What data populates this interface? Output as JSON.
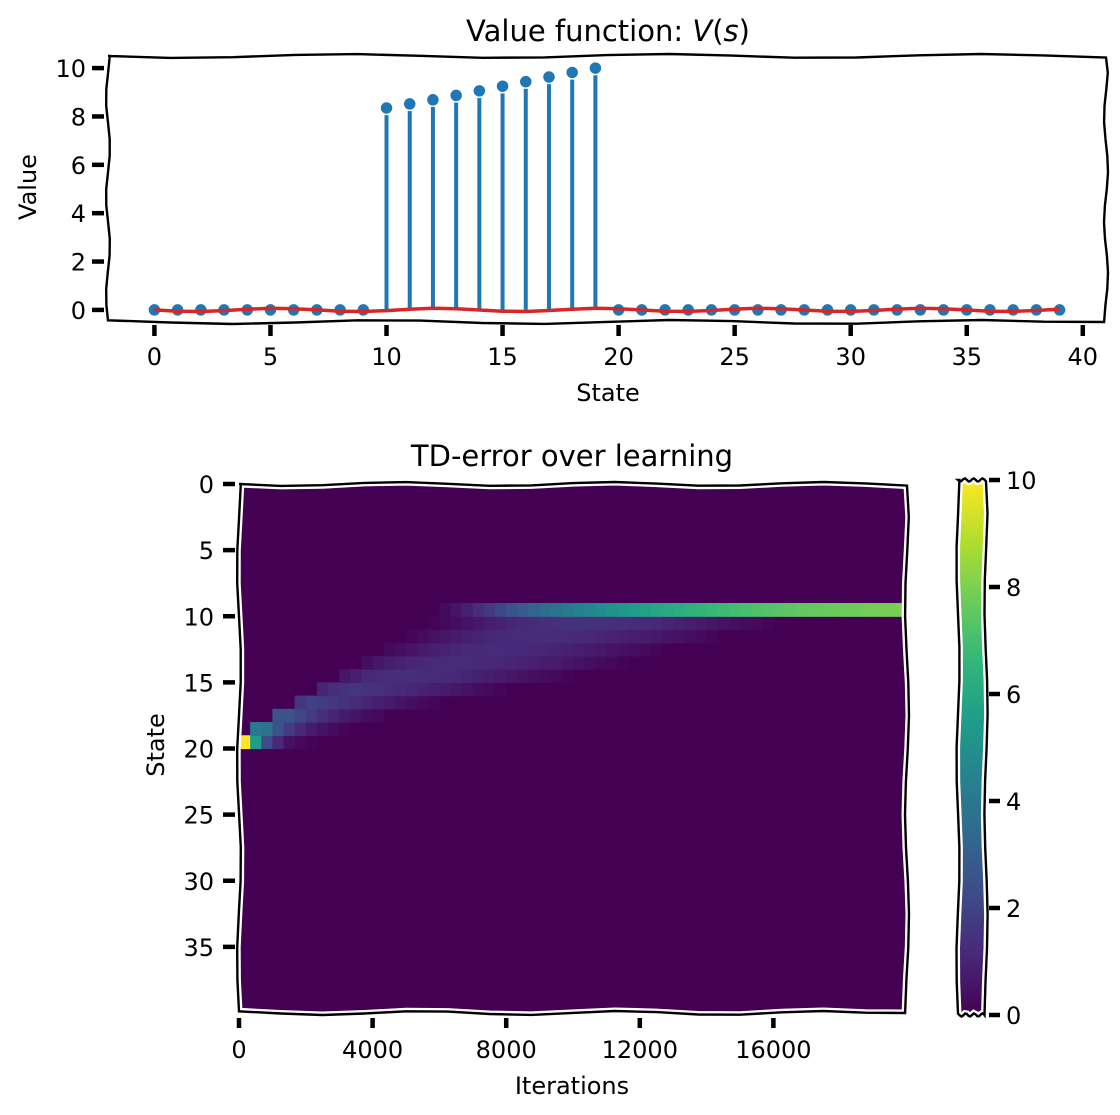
{
  "chart_data": [
    {
      "type": "line",
      "title": "Value function: V(s)",
      "title_prefix": "Value function: ",
      "title_v": "V",
      "title_s": "s",
      "xlabel": "State",
      "ylabel": "Value",
      "xlim": [
        -2,
        41
      ],
      "ylim": [
        -0.5,
        10.5
      ],
      "xticks": [
        0,
        5,
        10,
        15,
        20,
        25,
        30,
        35,
        40
      ],
      "yticks": [
        0,
        2,
        4,
        6,
        8,
        10
      ],
      "grid": false,
      "colors": {
        "stems": "#1f77b4",
        "line": "#d62728"
      },
      "series": [
        {
          "style": "stem",
          "x": [
            0,
            1,
            2,
            3,
            4,
            5,
            6,
            7,
            8,
            9,
            10,
            11,
            12,
            13,
            14,
            15,
            16,
            17,
            18,
            19,
            20,
            21,
            22,
            23,
            24,
            25,
            26,
            27,
            28,
            29,
            30,
            31,
            32,
            33,
            34,
            35,
            36,
            37,
            38,
            39
          ],
          "values": [
            0,
            0,
            0,
            0,
            0,
            0,
            0,
            0,
            0,
            0,
            8.35,
            8.52,
            8.69,
            8.87,
            9.06,
            9.25,
            9.44,
            9.63,
            9.82,
            10.0,
            0,
            0,
            0,
            0,
            0,
            0,
            0,
            0,
            0,
            0,
            0,
            0,
            0,
            0,
            0,
            0,
            0,
            0,
            0,
            0
          ]
        },
        {
          "style": "line",
          "x": [
            0,
            1,
            2,
            3,
            4,
            5,
            6,
            7,
            8,
            9,
            10,
            11,
            12,
            13,
            14,
            15,
            16,
            17,
            18,
            19,
            20,
            21,
            22,
            23,
            24,
            25,
            26,
            27,
            28,
            29,
            30,
            31,
            32,
            33,
            34,
            35,
            36,
            37,
            38,
            39
          ],
          "values": [
            0,
            0,
            0,
            0,
            0,
            0,
            0,
            0,
            0,
            0,
            0,
            0,
            0,
            0,
            0,
            0,
            0,
            0,
            0,
            0,
            0,
            0,
            0,
            0,
            0,
            0,
            0,
            0,
            0,
            0,
            0,
            0,
            0,
            0,
            0,
            0,
            0,
            0,
            0,
            0
          ]
        }
      ]
    },
    {
      "type": "heatmap",
      "title": "TD-error over learning",
      "xlabel": "Iterations",
      "ylabel": "State",
      "xticks": [
        0,
        4000,
        8000,
        12000,
        16000
      ],
      "yticks": [
        0,
        5,
        10,
        15,
        20,
        25,
        30,
        35
      ],
      "x_extent": [
        0,
        20000
      ],
      "y_extent": [
        0,
        40
      ],
      "n_columns": 60,
      "n_rows": 40,
      "colormap": "viridis",
      "colorbar": {
        "min": 0,
        "max": 10,
        "ticks": [
          0,
          2,
          4,
          6,
          8,
          10
        ]
      },
      "cells": [
        {
          "state": 19,
          "from_col": 0,
          "values": [
            10.0,
            5.5,
            2.3,
            1.1,
            0.45,
            0.2,
            0.1
          ]
        },
        {
          "state": 18,
          "from_col": 1,
          "values": [
            4.0,
            3.8,
            2.6,
            1.8,
            1.1,
            0.75,
            0.5,
            0.3,
            0.15
          ]
        },
        {
          "state": 17,
          "from_col": 3,
          "values": [
            2.5,
            2.6,
            2.1,
            1.7,
            1.3,
            1.0,
            0.75,
            0.55,
            0.35,
            0.2
          ]
        },
        {
          "state": 16,
          "from_col": 5,
          "values": [
            1.6,
            1.9,
            1.75,
            1.6,
            1.4,
            1.2,
            1.0,
            0.85,
            0.7,
            0.55,
            0.4,
            0.25,
            0.15
          ]
        },
        {
          "state": 15,
          "from_col": 7,
          "values": [
            1.0,
            1.3,
            1.45,
            1.5,
            1.45,
            1.35,
            1.25,
            1.15,
            1.05,
            0.95,
            0.85,
            0.72,
            0.6,
            0.48,
            0.35,
            0.25,
            0.15
          ]
        },
        {
          "state": 14,
          "from_col": 9,
          "values": [
            0.6,
            0.85,
            1.1,
            1.2,
            1.3,
            1.32,
            1.3,
            1.25,
            1.2,
            1.15,
            1.1,
            1.0,
            0.9,
            0.8,
            0.7,
            0.6,
            0.5,
            0.4,
            0.3,
            0.2,
            0.12
          ]
        },
        {
          "state": 13,
          "from_col": 11,
          "values": [
            0.4,
            0.6,
            0.8,
            0.95,
            1.05,
            1.15,
            1.2,
            1.22,
            1.2,
            1.18,
            1.15,
            1.1,
            1.05,
            1.0,
            0.92,
            0.85,
            0.78,
            0.7,
            0.6,
            0.5,
            0.4,
            0.3,
            0.2,
            0.12
          ]
        },
        {
          "state": 12,
          "from_col": 13,
          "values": [
            0.25,
            0.4,
            0.55,
            0.7,
            0.85,
            0.95,
            1.05,
            1.12,
            1.15,
            1.18,
            1.18,
            1.16,
            1.12,
            1.08,
            1.02,
            0.96,
            0.9,
            0.82,
            0.74,
            0.65,
            0.55,
            0.45,
            0.35,
            0.25,
            0.15
          ]
        },
        {
          "state": 11,
          "from_col": 15,
          "values": [
            0.15,
            0.3,
            0.45,
            0.6,
            0.72,
            0.85,
            0.95,
            1.05,
            1.12,
            1.18,
            1.22,
            1.25,
            1.25,
            1.24,
            1.2,
            1.15,
            1.1,
            1.05,
            0.98,
            0.9,
            0.82,
            0.74,
            0.65,
            0.55,
            0.45,
            0.35,
            0.25,
            0.15
          ]
        },
        {
          "state": 10,
          "from_col": 17,
          "values": [
            0.1,
            0.2,
            0.35,
            0.5,
            0.65,
            0.8,
            0.92,
            1.05,
            1.15,
            1.25,
            1.32,
            1.38,
            1.42,
            1.45,
            1.45,
            1.42,
            1.38,
            1.32,
            1.25,
            1.18,
            1.1,
            1.0,
            0.9,
            0.8,
            0.7,
            0.6,
            0.5,
            0.4,
            0.3,
            0.2,
            0.12
          ]
        },
        {
          "state": 9,
          "from_col": 18,
          "values": [
            0.25,
            0.55,
            0.9,
            1.3,
            1.7,
            2.1,
            2.5,
            2.85,
            3.2,
            3.5,
            3.8,
            4.1,
            4.35,
            4.6,
            4.85,
            5.1,
            5.3,
            5.5,
            5.7,
            5.9,
            6.05,
            6.2,
            6.35,
            6.5,
            6.65,
            6.8,
            6.95,
            7.05,
            7.15,
            7.25,
            7.35,
            7.45,
            7.55,
            7.6,
            7.65,
            7.7,
            7.75,
            7.8,
            7.85,
            7.9,
            7.92,
            7.95
          ]
        }
      ]
    }
  ]
}
